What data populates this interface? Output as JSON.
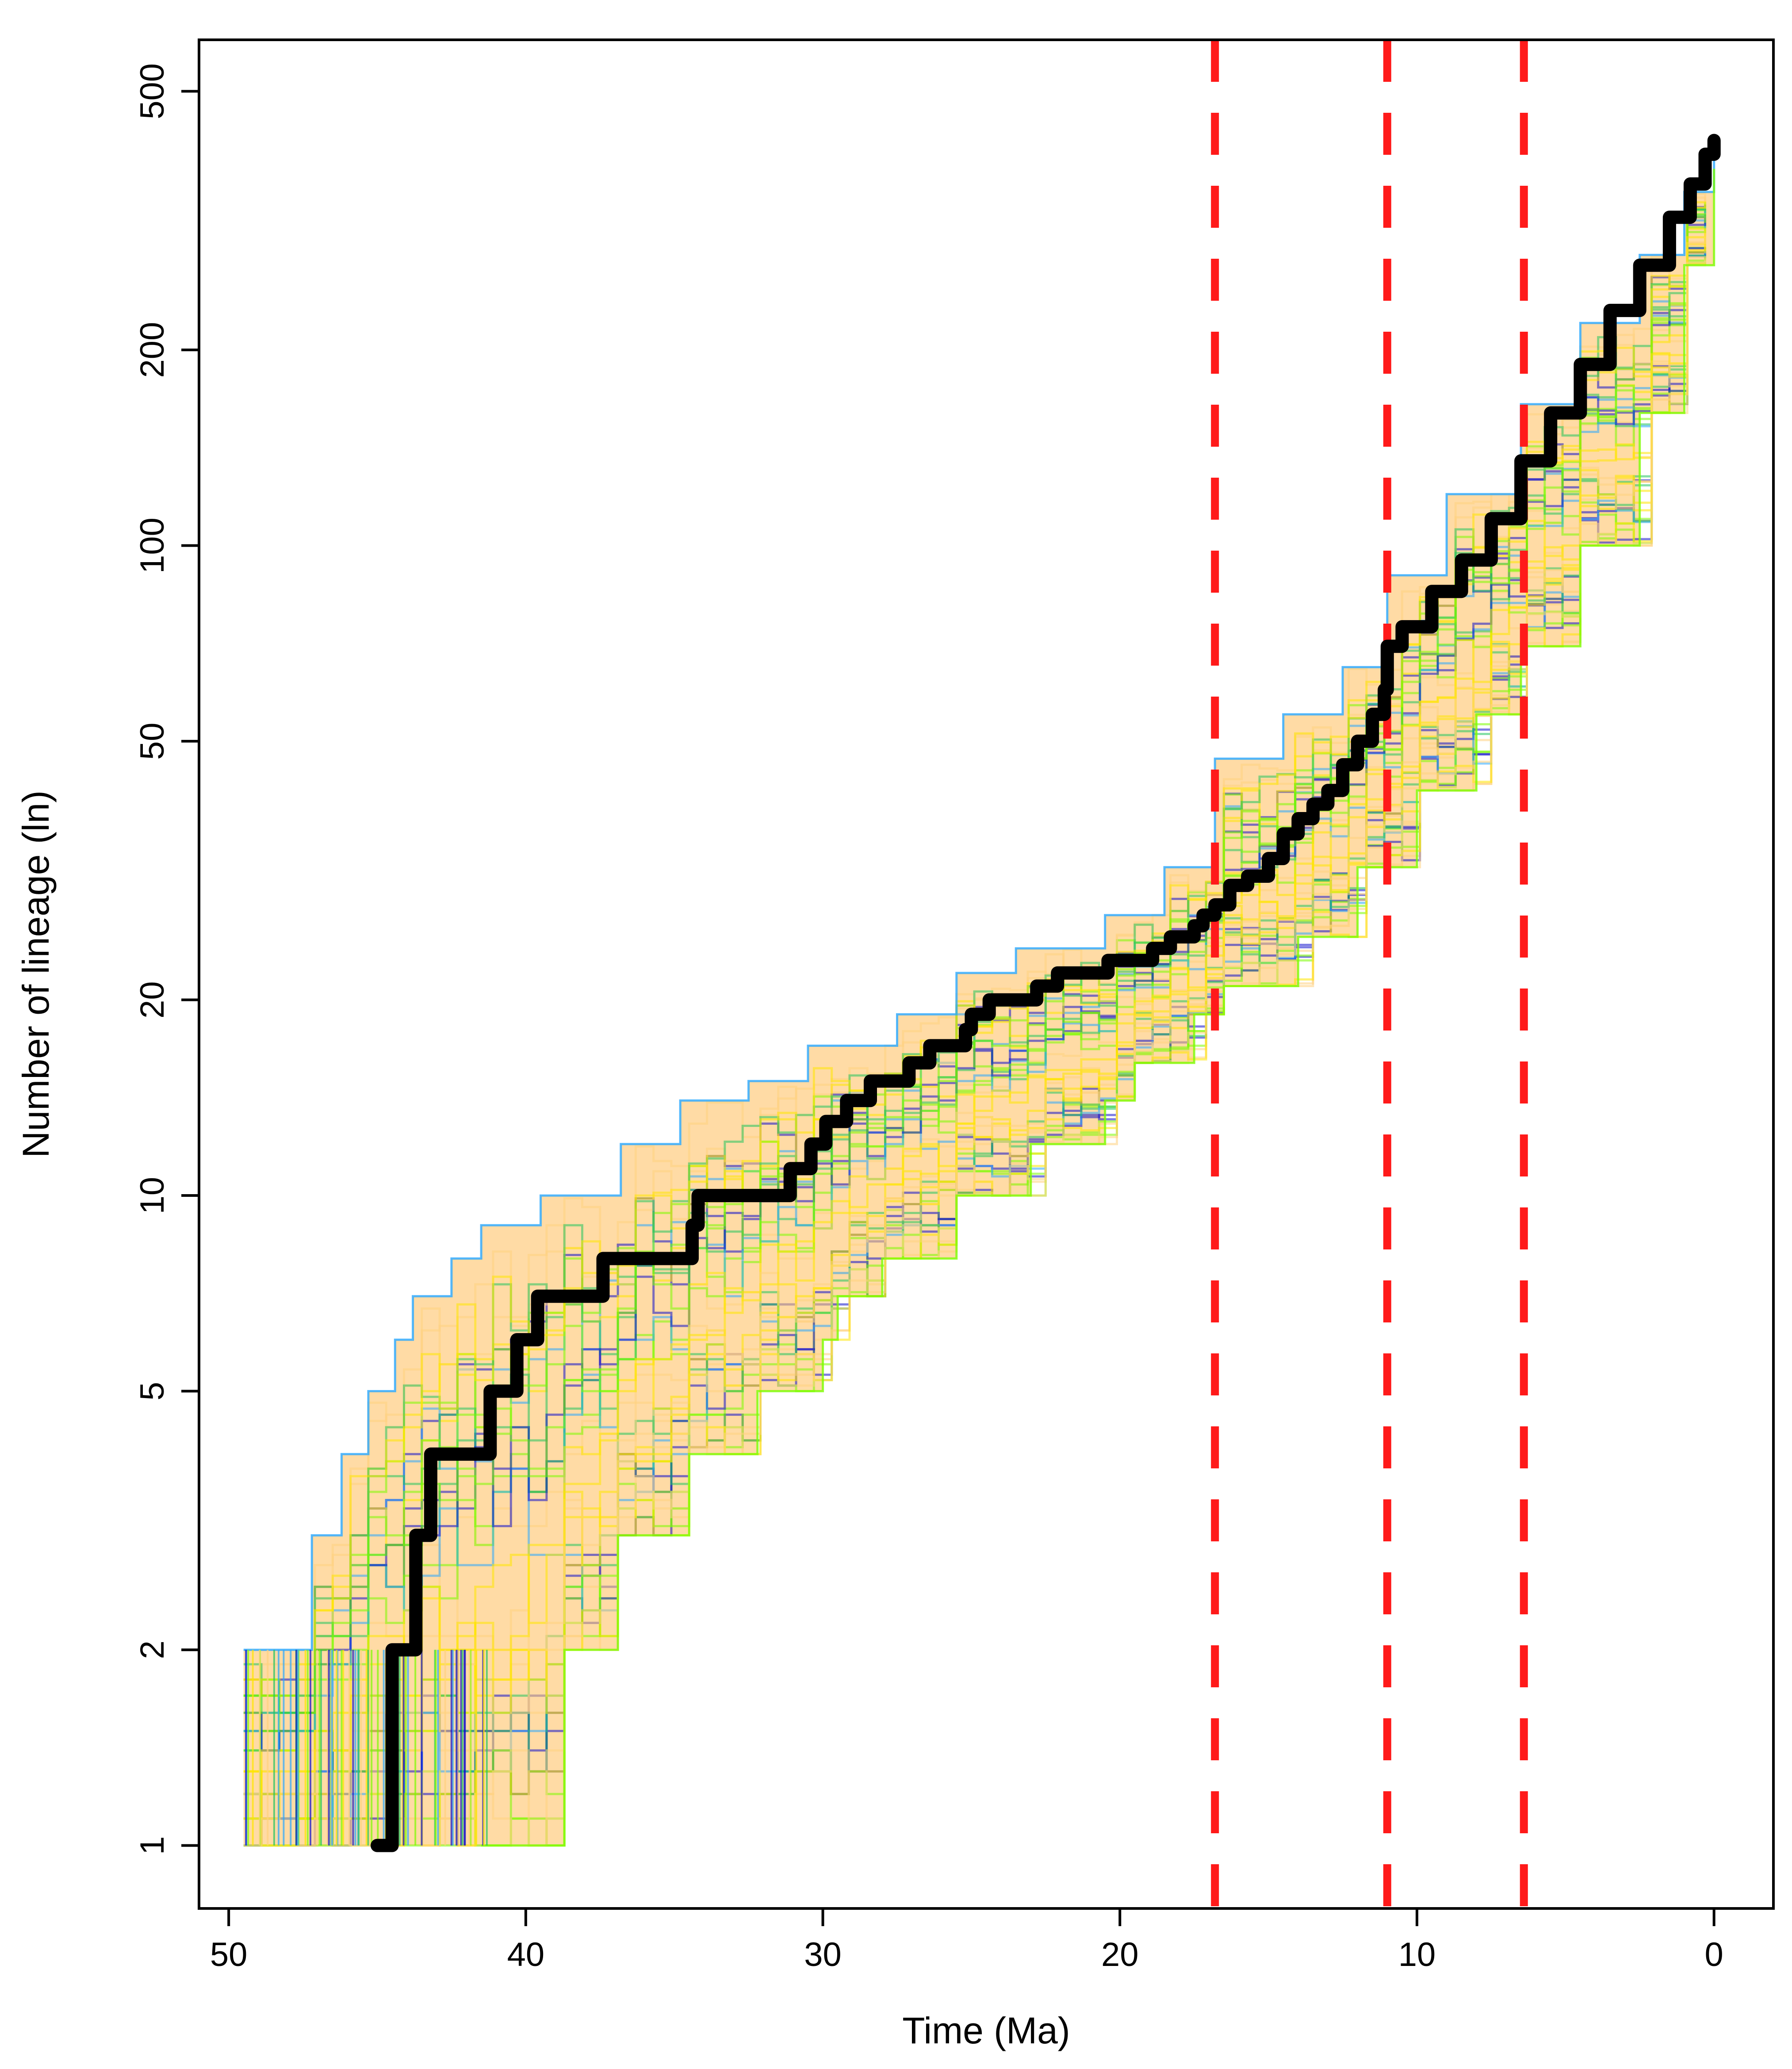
{
  "chart_data": {
    "type": "line",
    "title": "",
    "xlabel": "Time (Ma)",
    "ylabel": "Number of lineage (ln)",
    "x_reversed": true,
    "xlim": [
      51,
      -2
    ],
    "ylim": [
      0.8,
      600
    ],
    "y_scale": "log",
    "grid": false,
    "legend": "none",
    "x_ticks": [
      50,
      40,
      30,
      20,
      10,
      0
    ],
    "y_ticks": [
      1,
      2,
      5,
      10,
      20,
      50,
      100,
      200,
      500
    ],
    "colors": {
      "main_series": "#000000",
      "envelope_fill": "#ffd9a0",
      "trajectory_colors": [
        "#ffd27f",
        "#ffe600",
        "#7cfc00",
        "#22c55e",
        "#29a8ff",
        "#1010cc"
      ],
      "event_lines": "#ff1a1a"
    },
    "event_lines_x": [
      16.8,
      11.0,
      6.4
    ],
    "series": [
      {
        "role": "main",
        "x": [
          45,
          44.5,
          43.7,
          43.2,
          41.2,
          40.3,
          39.6,
          37.4,
          34.4,
          34.2,
          31.1,
          30.4,
          29.9,
          29.2,
          28.4,
          27.6,
          27.1,
          26.4,
          25.2,
          25.0,
          24.4,
          23.5,
          22.8,
          22.1,
          21.2,
          20.4,
          19.6,
          18.9,
          18.3,
          17.5,
          17.2,
          16.8,
          16.3,
          15.7,
          15.0,
          14.5,
          14.0,
          13.5,
          13.0,
          12.5,
          12.0,
          11.5,
          11.1,
          11.0,
          10.5,
          9.5,
          8.5,
          7.5,
          6.5,
          5.5,
          4.5,
          3.5,
          2.5,
          1.5,
          0.8,
          0.3,
          0
        ],
        "y": [
          1,
          2,
          3,
          4,
          5,
          6,
          7,
          8,
          9,
          10,
          11,
          12,
          13,
          14,
          15,
          15,
          16,
          17,
          18,
          19,
          20,
          20,
          21,
          22,
          22,
          23,
          23,
          24,
          25,
          26,
          27,
          28,
          30,
          31,
          33,
          36,
          38,
          40,
          42,
          46,
          50,
          55,
          60,
          70,
          75,
          85,
          95,
          110,
          135,
          160,
          190,
          230,
          270,
          320,
          360,
          400,
          420
        ]
      },
      {
        "role": "upper-envelope",
        "x": [
          49.5,
          47.2,
          46.2,
          45.3,
          44.4,
          43.8,
          42.5,
          41.5,
          39.5,
          36.8,
          34.8,
          32.5,
          30.5,
          27.5,
          25.5,
          23.5,
          20.5,
          18.5,
          16.8,
          14.5,
          12.5,
          11.0,
          9.0,
          6.5,
          4.5,
          2.5,
          1.0,
          0
        ],
        "y": [
          2,
          3,
          4,
          5,
          6,
          7,
          8,
          9,
          10,
          12,
          14,
          15,
          17,
          19,
          22,
          24,
          27,
          32,
          47,
          55,
          65,
          90,
          120,
          165,
          220,
          280,
          350,
          420
        ]
      },
      {
        "role": "lower-envelope",
        "x": [
          41.5,
          38.7,
          36.9,
          34.5,
          32.2,
          30.0,
          29.5,
          28.0,
          25.5,
          23.0,
          20.5,
          19.5,
          17.5,
          16.5,
          14.0,
          12.0,
          10.0,
          8.0,
          6.5,
          4.5,
          2.5,
          1.0,
          0
        ],
        "y": [
          1,
          2,
          3,
          4,
          5,
          6,
          7,
          8,
          10,
          12,
          14,
          16,
          19,
          21,
          25,
          32,
          42,
          55,
          70,
          100,
          160,
          270,
          380
        ]
      }
    ]
  }
}
